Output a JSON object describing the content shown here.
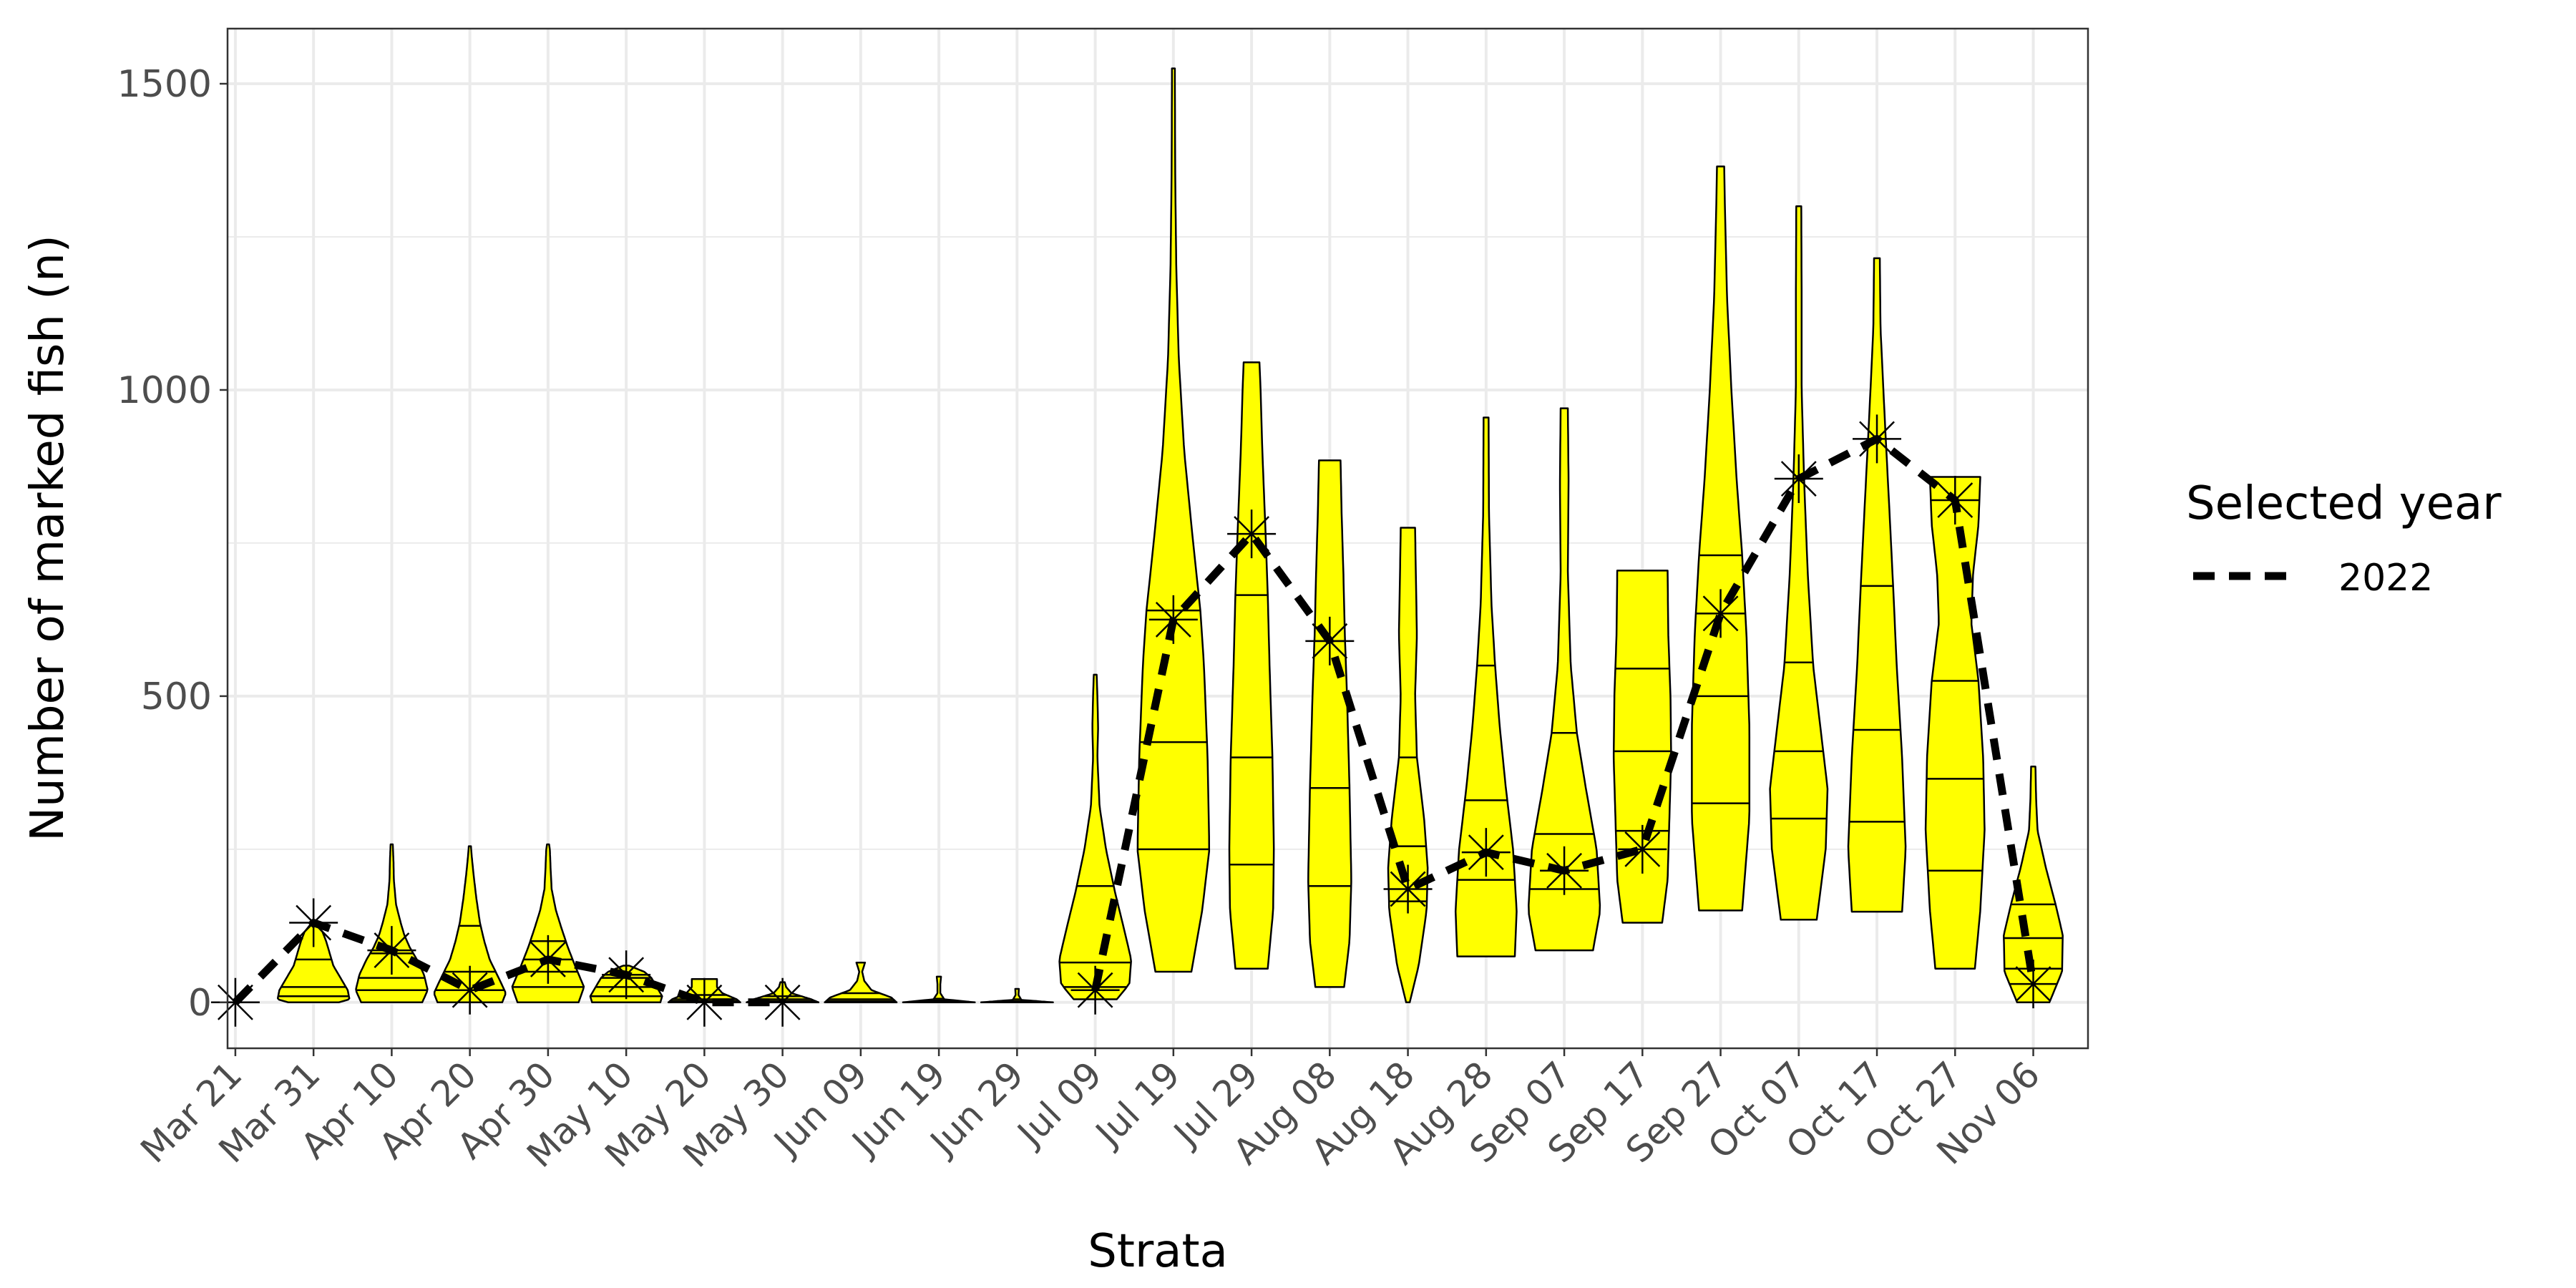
{
  "chart_data": {
    "type": "violin",
    "xlabel": "Strata",
    "ylabel": "Number of marked fish (n)",
    "ylim": [
      -75,
      1590
    ],
    "yticks": [
      0,
      500,
      1000,
      1500
    ],
    "ytick_labels": [
      "0",
      "500",
      "1000",
      "1500"
    ],
    "grid": true,
    "legend_placement": "right",
    "legend": {
      "title": "Selected year",
      "entries": [
        {
          "label": "2022",
          "style": "dashed"
        }
      ]
    },
    "colors": {
      "violin_fill": "#FFFF00",
      "outline": "#000000",
      "selected_line": "#000000",
      "grid": "#EBEBEB",
      "panel_border": "#333333"
    },
    "categories": [
      "Mar 21",
      "Mar 31",
      "Apr 10",
      "Apr 20",
      "Apr 30",
      "May 10",
      "May 20",
      "May 30",
      "Jun 09",
      "Jun 19",
      "Jun 29",
      "Jul 09",
      "Jul 19",
      "Jul 29",
      "Aug 08",
      "Aug 18",
      "Aug 28",
      "Sep 07",
      "Sep 17",
      "Sep 27",
      "Oct 07",
      "Oct 17",
      "Oct 27",
      "Nov 06"
    ],
    "violins": [
      {
        "min": 0,
        "max": 0,
        "quantiles": [
          0,
          0,
          0
        ],
        "profile": [
          [
            0,
            0
          ]
        ]
      },
      {
        "min": 0,
        "max": 130,
        "quantiles": [
          10,
          25,
          70
        ],
        "profile": [
          [
            0,
            0.7
          ],
          [
            5,
            1.0
          ],
          [
            20,
            0.95
          ],
          [
            40,
            0.75
          ],
          [
            60,
            0.55
          ],
          [
            80,
            0.45
          ],
          [
            100,
            0.35
          ],
          [
            115,
            0.25
          ],
          [
            130,
            0.05
          ]
        ]
      },
      {
        "min": 0,
        "max": 258,
        "quantiles": [
          20,
          40,
          80
        ],
        "profile": [
          [
            0,
            0.85
          ],
          [
            20,
            1.0
          ],
          [
            45,
            0.9
          ],
          [
            70,
            0.7
          ],
          [
            90,
            0.5
          ],
          [
            110,
            0.35
          ],
          [
            130,
            0.25
          ],
          [
            160,
            0.12
          ],
          [
            200,
            0.06
          ],
          [
            230,
            0.05
          ],
          [
            258,
            0.03
          ]
        ]
      },
      {
        "min": 0,
        "max": 255,
        "quantiles": [
          20,
          50,
          125
        ],
        "profile": [
          [
            0,
            0.9
          ],
          [
            15,
            1.0
          ],
          [
            40,
            0.8
          ],
          [
            70,
            0.55
          ],
          [
            100,
            0.4
          ],
          [
            130,
            0.28
          ],
          [
            170,
            0.18
          ],
          [
            210,
            0.1
          ],
          [
            240,
            0.05
          ],
          [
            255,
            0.03
          ]
        ]
      },
      {
        "min": 0,
        "max": 258,
        "quantiles": [
          25,
          50,
          100
        ],
        "profile": [
          [
            0,
            0.85
          ],
          [
            25,
            1.0
          ],
          [
            60,
            0.75
          ],
          [
            90,
            0.55
          ],
          [
            120,
            0.38
          ],
          [
            150,
            0.22
          ],
          [
            185,
            0.1
          ],
          [
            220,
            0.07
          ],
          [
            250,
            0.05
          ],
          [
            258,
            0.03
          ]
        ]
      },
      {
        "min": 0,
        "max": 60,
        "quantiles": [
          10,
          25,
          40
        ],
        "profile": [
          [
            0,
            0.95
          ],
          [
            10,
            1.0
          ],
          [
            25,
            0.85
          ],
          [
            40,
            0.7
          ],
          [
            50,
            0.5
          ],
          [
            60,
            0.08
          ]
        ]
      },
      {
        "min": 0,
        "max": 38,
        "quantiles": [
          2,
          5,
          12
        ],
        "profile": [
          [
            0,
            1.0
          ],
          [
            5,
            0.9
          ],
          [
            15,
            0.5
          ],
          [
            25,
            0.35
          ],
          [
            32,
            0.35
          ],
          [
            38,
            0.35
          ]
        ]
      },
      {
        "min": 0,
        "max": 33,
        "quantiles": [
          2,
          5,
          10
        ],
        "profile": [
          [
            0,
            1.0
          ],
          [
            5,
            0.8
          ],
          [
            15,
            0.25
          ],
          [
            25,
            0.1
          ],
          [
            33,
            0.06
          ]
        ]
      },
      {
        "min": 0,
        "max": 65,
        "quantiles": [
          2,
          5,
          15
        ],
        "profile": [
          [
            0,
            1.0
          ],
          [
            8,
            0.85
          ],
          [
            20,
            0.3
          ],
          [
            35,
            0.1
          ],
          [
            50,
            0.04
          ],
          [
            65,
            0.12
          ]
        ]
      },
      {
        "min": 0,
        "max": 42,
        "quantiles": [
          1,
          3,
          6
        ],
        "profile": [
          [
            0,
            1.0
          ],
          [
            5,
            0.15
          ],
          [
            15,
            0.04
          ],
          [
            30,
            0.04
          ],
          [
            42,
            0.06
          ]
        ]
      },
      {
        "min": 0,
        "max": 22,
        "quantiles": [
          1,
          2,
          5
        ],
        "profile": [
          [
            0,
            1.0
          ],
          [
            4,
            0.12
          ],
          [
            12,
            0.04
          ],
          [
            22,
            0.05
          ]
        ]
      },
      {
        "min": 5,
        "max": 535,
        "quantiles": [
          25,
          65,
          190
        ],
        "profile": [
          [
            5,
            0.6
          ],
          [
            30,
            0.95
          ],
          [
            70,
            1.0
          ],
          [
            120,
            0.8
          ],
          [
            180,
            0.55
          ],
          [
            250,
            0.3
          ],
          [
            320,
            0.12
          ],
          [
            400,
            0.06
          ],
          [
            450,
            0.08
          ],
          [
            500,
            0.06
          ],
          [
            535,
            0.04
          ]
        ]
      },
      {
        "min": 50,
        "max": 1525,
        "quantiles": [
          250,
          425,
          640
        ],
        "profile": [
          [
            50,
            0.5
          ],
          [
            150,
            0.8
          ],
          [
            250,
            1.0
          ],
          [
            400,
            0.95
          ],
          [
            550,
            0.85
          ],
          [
            640,
            0.75
          ],
          [
            750,
            0.55
          ],
          [
            900,
            0.3
          ],
          [
            1050,
            0.15
          ],
          [
            1200,
            0.08
          ],
          [
            1350,
            0.05
          ],
          [
            1525,
            0.04
          ]
        ]
      },
      {
        "min": 55,
        "max": 1045,
        "quantiles": [
          225,
          400,
          665
        ],
        "profile": [
          [
            55,
            0.45
          ],
          [
            150,
            0.6
          ],
          [
            250,
            0.62
          ],
          [
            400,
            0.58
          ],
          [
            550,
            0.5
          ],
          [
            665,
            0.45
          ],
          [
            780,
            0.38
          ],
          [
            900,
            0.3
          ],
          [
            1000,
            0.25
          ],
          [
            1045,
            0.22
          ]
        ]
      },
      {
        "min": 25,
        "max": 885,
        "quantiles": [
          190,
          350,
          590
        ],
        "profile": [
          [
            25,
            0.4
          ],
          [
            100,
            0.55
          ],
          [
            200,
            0.6
          ],
          [
            350,
            0.55
          ],
          [
            500,
            0.48
          ],
          [
            600,
            0.42
          ],
          [
            700,
            0.38
          ],
          [
            800,
            0.33
          ],
          [
            885,
            0.3
          ]
        ]
      },
      {
        "min": 0,
        "max": 775,
        "quantiles": [
          165,
          255,
          400
        ],
        "profile": [
          [
            0,
            0.05
          ],
          [
            60,
            0.3
          ],
          [
            150,
            0.52
          ],
          [
            220,
            0.55
          ],
          [
            300,
            0.45
          ],
          [
            400,
            0.25
          ],
          [
            500,
            0.2
          ],
          [
            600,
            0.25
          ],
          [
            700,
            0.22
          ],
          [
            775,
            0.2
          ]
        ]
      },
      {
        "min": 75,
        "max": 955,
        "quantiles": [
          200,
          330,
          550
        ],
        "profile": [
          [
            75,
            0.8
          ],
          [
            150,
            0.85
          ],
          [
            250,
            0.75
          ],
          [
            350,
            0.55
          ],
          [
            450,
            0.38
          ],
          [
            550,
            0.25
          ],
          [
            650,
            0.15
          ],
          [
            800,
            0.08
          ],
          [
            955,
            0.07
          ]
        ]
      },
      {
        "min": 85,
        "max": 970,
        "quantiles": [
          185,
          275,
          440
        ],
        "profile": [
          [
            85,
            0.8
          ],
          [
            150,
            1.0
          ],
          [
            250,
            0.9
          ],
          [
            350,
            0.6
          ],
          [
            440,
            0.35
          ],
          [
            550,
            0.18
          ],
          [
            700,
            0.1
          ],
          [
            850,
            0.12
          ],
          [
            970,
            0.1
          ]
        ]
      },
      {
        "min": 130,
        "max": 705,
        "quantiles": [
          280,
          410,
          545
        ],
        "profile": [
          [
            130,
            0.55
          ],
          [
            200,
            0.7
          ],
          [
            300,
            0.75
          ],
          [
            400,
            0.8
          ],
          [
            500,
            0.78
          ],
          [
            600,
            0.72
          ],
          [
            705,
            0.7
          ]
        ]
      },
      {
        "min": 150,
        "max": 1365,
        "quantiles": [
          325,
          500,
          730
        ],
        "profile": [
          [
            150,
            0.6
          ],
          [
            300,
            0.8
          ],
          [
            450,
            0.8
          ],
          [
            600,
            0.72
          ],
          [
            730,
            0.6
          ],
          [
            850,
            0.45
          ],
          [
            1000,
            0.3
          ],
          [
            1150,
            0.18
          ],
          [
            1300,
            0.12
          ],
          [
            1365,
            0.1
          ]
        ]
      },
      {
        "min": 135,
        "max": 1300,
        "quantiles": [
          300,
          410,
          555
        ],
        "profile": [
          [
            135,
            0.5
          ],
          [
            250,
            0.75
          ],
          [
            350,
            0.8
          ],
          [
            450,
            0.6
          ],
          [
            550,
            0.4
          ],
          [
            700,
            0.25
          ],
          [
            850,
            0.15
          ],
          [
            1000,
            0.08
          ],
          [
            1150,
            0.08
          ],
          [
            1300,
            0.07
          ]
        ]
      },
      {
        "min": 148,
        "max": 1215,
        "quantiles": [
          295,
          445,
          680
        ],
        "profile": [
          [
            148,
            0.7
          ],
          [
            250,
            0.8
          ],
          [
            400,
            0.7
          ],
          [
            550,
            0.55
          ],
          [
            680,
            0.45
          ],
          [
            800,
            0.35
          ],
          [
            950,
            0.22
          ],
          [
            1100,
            0.1
          ],
          [
            1215,
            0.08
          ]
        ]
      },
      {
        "min": 55,
        "max": 858,
        "quantiles": [
          215,
          365,
          525
        ],
        "profile": [
          [
            55,
            0.55
          ],
          [
            150,
            0.7
          ],
          [
            280,
            0.82
          ],
          [
            400,
            0.78
          ],
          [
            525,
            0.65
          ],
          [
            620,
            0.45
          ],
          [
            700,
            0.5
          ],
          [
            780,
            0.65
          ],
          [
            858,
            0.7
          ]
        ]
      },
      {
        "min": 0,
        "max": 385,
        "quantiles": [
          55,
          105,
          160
        ],
        "profile": [
          [
            0,
            0.45
          ],
          [
            50,
            0.8
          ],
          [
            110,
            0.82
          ],
          [
            160,
            0.62
          ],
          [
            220,
            0.35
          ],
          [
            280,
            0.12
          ],
          [
            330,
            0.08
          ],
          [
            385,
            0.06
          ]
        ]
      }
    ],
    "series": [
      {
        "name": "2022",
        "style": "dashed",
        "values": [
          0,
          130,
          85,
          20,
          70,
          45,
          0,
          0,
          null,
          null,
          null,
          20,
          625,
          765,
          590,
          185,
          245,
          215,
          250,
          635,
          855,
          920,
          820,
          30
        ]
      }
    ]
  }
}
